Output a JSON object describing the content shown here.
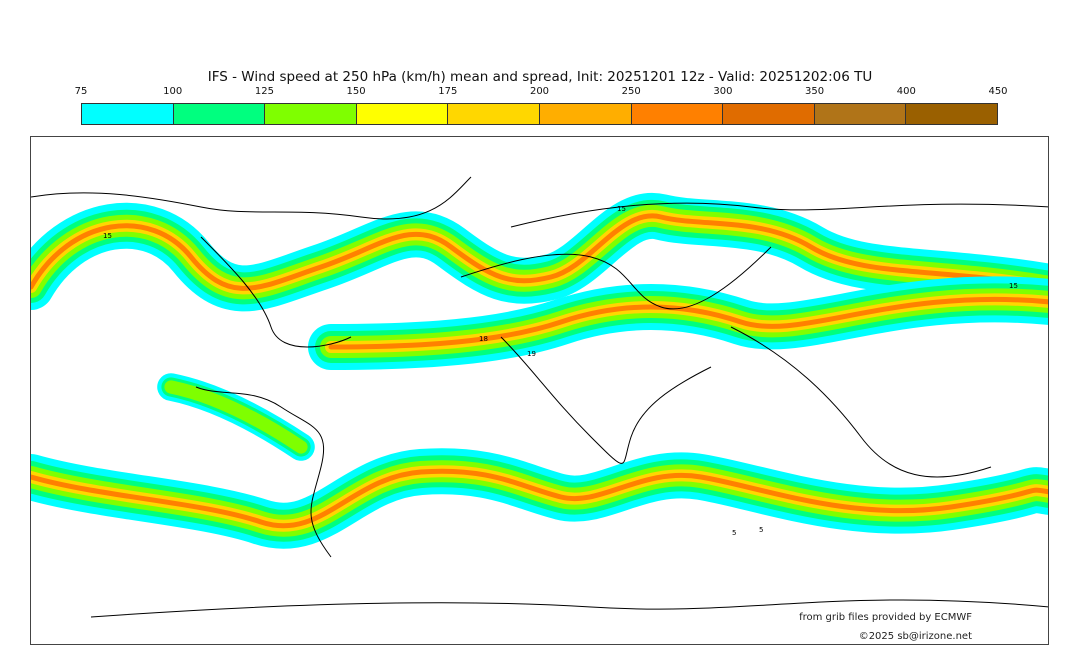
{
  "title": "IFS - Wind speed at 250 hPa (km/h) mean and spread, Init: 20251201 12z - Valid: 20251202:06 TU",
  "colorbar": {
    "ticks": [
      "75",
      "100",
      "125",
      "150",
      "175",
      "200",
      "250",
      "300",
      "350",
      "400",
      "450"
    ],
    "colors": [
      "#00ffff",
      "#00ff7f",
      "#7fff00",
      "#ffff00",
      "#ffd700",
      "#ffae00",
      "#ff8000",
      "#e06c00",
      "#b07418",
      "#9a6000"
    ]
  },
  "contour_labels": [
    "15",
    "15",
    "18",
    "19",
    "15",
    "5",
    "5"
  ],
  "credits": {
    "source": "from grib files provided by ECMWF",
    "copyright": "©2025 sb@irizone.net"
  }
}
